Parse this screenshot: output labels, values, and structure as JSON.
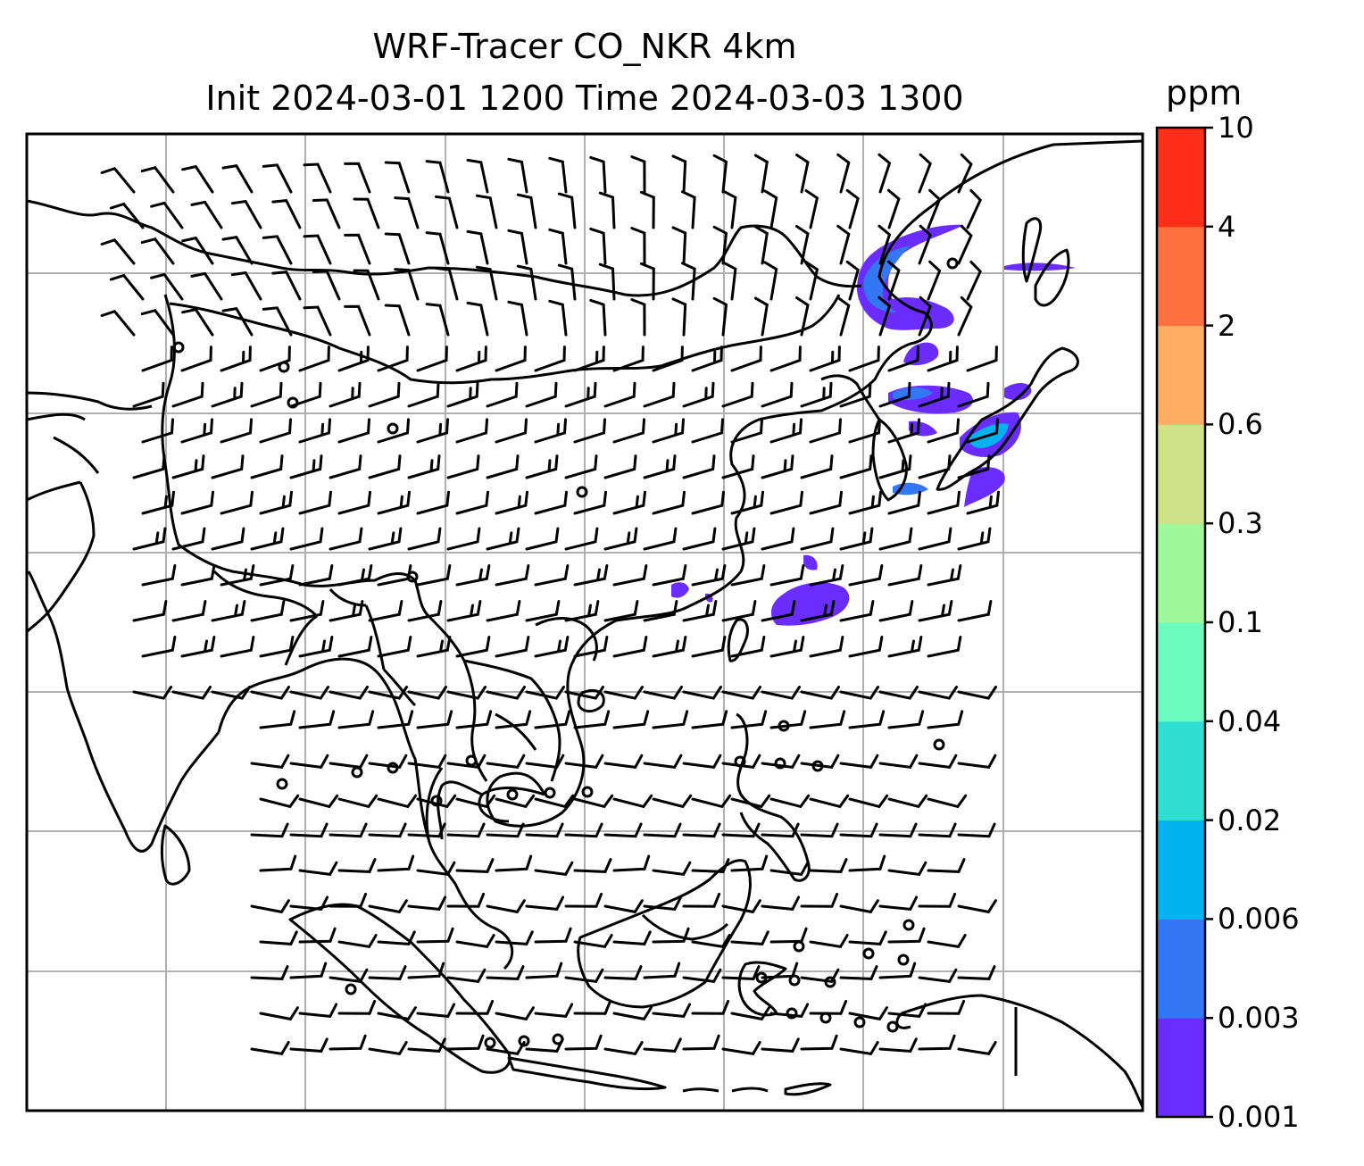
{
  "title_line1": "WRF-Tracer CO_NKR 4km",
  "title_line2": "Init 2024-03-01 1200 Time 2024-03-03 1300",
  "colorbar": {
    "unit": "ppm",
    "levels": [
      "0.001",
      "0.003",
      "0.006",
      "0.02",
      "0.04",
      "0.1",
      "0.3",
      "0.6",
      "2",
      "4",
      "10"
    ],
    "colors": [
      "#6a2cff",
      "#3377f5",
      "#00b2ee",
      "#2fdfd2",
      "#6bfbbd",
      "#9ff99c",
      "#cfe287",
      "#ffae63",
      "#ff7040",
      "#ff2e1a"
    ]
  },
  "map": {
    "gridline_color": "#b0b0b0",
    "coastline_color": "#000000",
    "wind_barb_color": "#000000"
  }
}
